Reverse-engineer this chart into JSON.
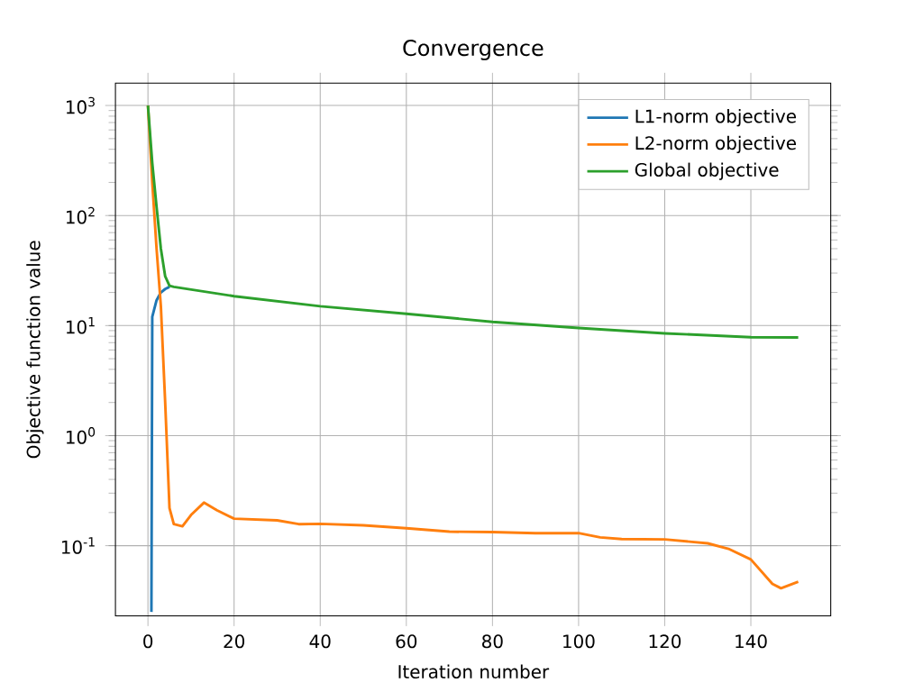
{
  "chart_data": {
    "type": "line",
    "title": "Convergence",
    "xlabel": "Iteration number",
    "ylabel": "Objective function value",
    "log": "y",
    "grid": true,
    "legend": "top right",
    "xlim": [
      -7.55,
      158.55
    ],
    "xticks": [
      0,
      20,
      40,
      60,
      80,
      100,
      120,
      140
    ],
    "ylim": [
      0.023,
      1600
    ],
    "yticks": [
      {
        "value": 0.1,
        "label": "10$^{-1}$"
      },
      {
        "value": 1,
        "label": "10$^{0}$"
      },
      {
        "value": 10,
        "label": "10$^{1}$"
      },
      {
        "value": 100,
        "label": "10$^{2}$"
      },
      {
        "value": 1000,
        "label": "10$^{3}$"
      }
    ],
    "series": [
      {
        "name": "L1-norm objective",
        "color": "#1f77b4",
        "x": [
          0.8,
          1,
          2,
          3,
          4,
          5
        ],
        "values": [
          0.025,
          12,
          17,
          20,
          21.5,
          22.5
        ]
      },
      {
        "name": "L2-norm objective",
        "color": "#ff7f0e",
        "x": [
          0,
          1,
          2,
          3,
          4,
          5,
          6,
          8,
          10,
          13,
          16,
          20,
          30,
          35,
          40,
          50,
          60,
          70,
          80,
          90,
          100,
          105,
          110,
          120,
          130,
          135,
          140,
          145,
          147,
          151
        ],
        "values": [
          1000,
          200,
          50,
          15,
          2,
          0.22,
          0.157,
          0.15,
          0.19,
          0.246,
          0.21,
          0.176,
          0.17,
          0.157,
          0.158,
          0.153,
          0.144,
          0.134,
          0.133,
          0.13,
          0.13,
          0.119,
          0.115,
          0.114,
          0.105,
          0.093,
          0.075,
          0.045,
          0.041,
          0.047
        ]
      },
      {
        "name": "Global objective",
        "color": "#2ca02c",
        "x": [
          0,
          1,
          2,
          3,
          4,
          5,
          6,
          20,
          40,
          60,
          80,
          100,
          120,
          140,
          151
        ],
        "values": [
          1000,
          300,
          120,
          50,
          28,
          23,
          22.5,
          18.5,
          15,
          12.8,
          10.8,
          9.5,
          8.5,
          7.85,
          7.8
        ]
      }
    ]
  }
}
